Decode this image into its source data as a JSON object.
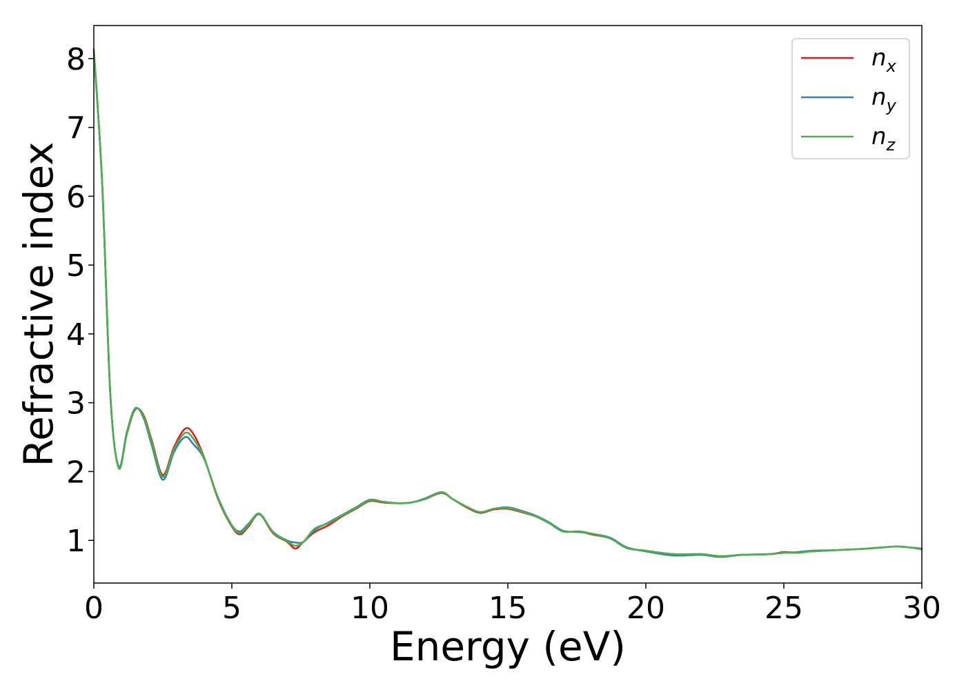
{
  "chart_data": {
    "type": "line",
    "xlabel": "Energy (eV)",
    "ylabel": "Refractive index",
    "xlim": [
      0,
      30
    ],
    "ylim": [
      0.38,
      8.48
    ],
    "x_ticks": [
      "0",
      "5",
      "10",
      "15",
      "20",
      "25",
      "30"
    ],
    "y_ticks": [
      "1",
      "2",
      "3",
      "4",
      "5",
      "6",
      "7",
      "8"
    ],
    "grid": false,
    "legend_position": "top-right",
    "x": [
      0,
      0.3,
      0.6,
      0.9,
      1.2,
      1.5,
      1.8,
      2.1,
      2.5,
      2.9,
      3.3,
      3.6,
      4.0,
      4.5,
      5.0,
      5.3,
      5.6,
      6.0,
      6.5,
      7.0,
      7.3,
      7.6,
      8.0,
      8.5,
      9.0,
      9.5,
      10.0,
      10.5,
      11.0,
      11.5,
      12.0,
      12.6,
      13.0,
      13.5,
      14.0,
      14.5,
      15.0,
      15.5,
      16.0,
      16.5,
      17.0,
      17.6,
      18.0,
      18.7,
      19.3,
      20.0,
      21.0,
      22.0,
      22.7,
      23.5,
      24.5,
      25.0,
      25.5,
      26.0,
      27.0,
      28.0,
      29.0,
      29.5,
      30.0
    ],
    "series": [
      {
        "name": "n",
        "subscript": "x",
        "color": "#e41a1c",
        "values": [
          8.12,
          6.2,
          3.1,
          2.06,
          2.55,
          2.9,
          2.82,
          2.45,
          1.95,
          2.35,
          2.62,
          2.55,
          2.2,
          1.6,
          1.2,
          1.09,
          1.2,
          1.38,
          1.1,
          0.98,
          0.88,
          0.98,
          1.12,
          1.22,
          1.35,
          1.46,
          1.57,
          1.55,
          1.54,
          1.55,
          1.6,
          1.69,
          1.6,
          1.48,
          1.4,
          1.45,
          1.46,
          1.41,
          1.35,
          1.25,
          1.13,
          1.13,
          1.09,
          1.03,
          0.89,
          0.85,
          0.8,
          0.8,
          0.77,
          0.79,
          0.8,
          0.83,
          0.82,
          0.84,
          0.86,
          0.88,
          0.91,
          0.9,
          0.88
        ]
      },
      {
        "name": "n",
        "subscript": "y",
        "color": "#377eb8",
        "values": [
          8.1,
          6.2,
          3.1,
          2.07,
          2.58,
          2.92,
          2.78,
          2.38,
          1.88,
          2.28,
          2.5,
          2.4,
          2.18,
          1.62,
          1.22,
          1.13,
          1.24,
          1.38,
          1.12,
          1.0,
          0.97,
          0.98,
          1.15,
          1.26,
          1.37,
          1.48,
          1.59,
          1.56,
          1.54,
          1.55,
          1.61,
          1.7,
          1.6,
          1.49,
          1.41,
          1.46,
          1.48,
          1.43,
          1.36,
          1.26,
          1.14,
          1.12,
          1.1,
          1.04,
          0.9,
          0.84,
          0.78,
          0.79,
          0.76,
          0.79,
          0.8,
          0.82,
          0.83,
          0.85,
          0.86,
          0.88,
          0.91,
          0.9,
          0.87
        ]
      },
      {
        "name": "n",
        "subscript": "z",
        "color": "#4daf4a",
        "values": [
          8.14,
          6.2,
          3.1,
          2.05,
          2.56,
          2.91,
          2.8,
          2.42,
          1.92,
          2.32,
          2.56,
          2.48,
          2.19,
          1.61,
          1.21,
          1.11,
          1.22,
          1.39,
          1.11,
          0.99,
          0.92,
          0.98,
          1.17,
          1.25,
          1.36,
          1.47,
          1.58,
          1.56,
          1.54,
          1.55,
          1.6,
          1.7,
          1.6,
          1.49,
          1.41,
          1.46,
          1.47,
          1.42,
          1.35,
          1.25,
          1.13,
          1.13,
          1.1,
          1.03,
          0.89,
          0.85,
          0.8,
          0.8,
          0.77,
          0.79,
          0.8,
          0.82,
          0.82,
          0.84,
          0.86,
          0.88,
          0.91,
          0.9,
          0.88
        ]
      }
    ]
  }
}
